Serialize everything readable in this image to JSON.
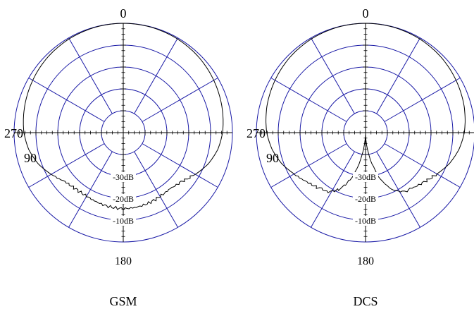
{
  "chart_data": [
    {
      "type": "polar-line",
      "title": "GSM",
      "angle_labels": {
        "top": "0",
        "bottom": "180",
        "left": "270",
        "left_inner": "90"
      },
      "radial_labels": [
        "-30dB",
        "-20dB",
        "-10dB"
      ],
      "radial_range_db": [
        -40,
        0
      ],
      "ring_levels_db": [
        -40,
        -30,
        -20,
        -10,
        0
      ],
      "spoke_step_deg": 30,
      "grid_color": "#1a1aa6",
      "trace_color": "#000000",
      "series": [
        {
          "angle_deg": [
            0,
            15,
            30,
            45,
            60,
            75,
            90,
            100,
            110,
            120,
            130,
            140,
            150,
            160,
            170,
            180,
            190,
            200,
            210,
            220,
            230,
            240,
            250,
            260,
            270,
            285,
            300,
            315,
            330,
            345,
            360
          ],
          "gain_db": [
            0,
            -0.1,
            -0.4,
            -0.9,
            -1.7,
            -2.6,
            -3.6,
            -4.8,
            -6.8,
            -9.5,
            -12.2,
            -13.3,
            -13.1,
            -12.6,
            -12.3,
            -12.2,
            -12.4,
            -12.8,
            -13.2,
            -13.1,
            -12.2,
            -9.5,
            -6.8,
            -4.8,
            -3.6,
            -2.6,
            -1.7,
            -0.9,
            -0.4,
            -0.1,
            0
          ]
        }
      ]
    },
    {
      "type": "polar-line",
      "title": "DCS",
      "angle_labels": {
        "top": "0",
        "bottom": "180",
        "left": "270",
        "left_inner": "90"
      },
      "radial_labels": [
        "-30dB",
        "-20dB",
        "-10dB"
      ],
      "radial_range_db": [
        -40,
        0
      ],
      "ring_levels_db": [
        -40,
        -30,
        -20,
        -10,
        0
      ],
      "spoke_step_deg": 30,
      "grid_color": "#1a1aa6",
      "trace_color": "#000000",
      "series": [
        {
          "angle_deg": [
            0,
            15,
            30,
            45,
            60,
            75,
            90,
            100,
            110,
            120,
            130,
            140,
            148,
            155,
            162,
            170,
            175,
            180,
            185,
            190,
            198,
            205,
            212,
            220,
            230,
            240,
            250,
            260,
            270,
            285,
            300,
            315,
            330,
            345,
            360
          ],
          "gain_db": [
            0,
            -0.1,
            -0.4,
            -0.9,
            -1.7,
            -2.6,
            -3.8,
            -5.2,
            -7.2,
            -9.8,
            -12.0,
            -13.5,
            -14.5,
            -17,
            -22,
            -30,
            -36,
            -40,
            -36,
            -30,
            -22,
            -17,
            -14.5,
            -13.5,
            -12.0,
            -9.8,
            -7.2,
            -5.2,
            -3.8,
            -2.6,
            -1.7,
            -0.9,
            -0.4,
            -0.1,
            0
          ]
        }
      ]
    }
  ]
}
